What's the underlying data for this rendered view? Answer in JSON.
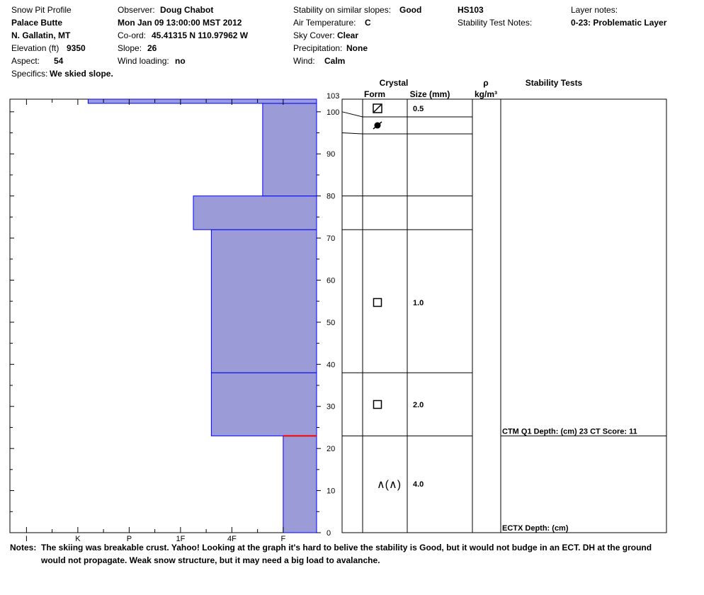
{
  "header": {
    "profile_title": "Snow Pit Profile",
    "location": "Palace Butte",
    "region": "N. Gallatin, MT",
    "elevation_label": "Elevation (ft)",
    "elevation_value": "9350",
    "aspect_label": "Aspect:",
    "aspect_value": "54",
    "specifics_label": "Specifics:",
    "specifics_value": "We skied slope.",
    "observer_label": "Observer:",
    "observer_value": "Doug Chabot",
    "datetime": "Mon Jan 09 13:00:00 MST 2012",
    "coord_label": "Co-ord:",
    "coord_value": "45.41315 N 110.97962 W",
    "slope_label": "Slope:",
    "slope_value": "26",
    "wind_loading_label": "Wind loading:",
    "wind_loading_value": "no",
    "stability_label": "Stability on similar slopes:",
    "stability_value": "Good",
    "air_temp_label": "Air Temperature:",
    "air_temp_value": "C",
    "sky_label": "Sky Cover:",
    "sky_value": "Clear",
    "precip_label": "Precipitation:",
    "precip_value": "None",
    "wind_label": "Wind:",
    "wind_value": "Calm",
    "hs": "HS103",
    "stability_notes_label": "Stability Test Notes:",
    "layer_notes_label": "Layer notes:",
    "layer_notes_value": "0-23: Problematic Layer"
  },
  "notes": {
    "label": "Notes:",
    "line1": "The skiing was breakable crust. Yahoo!  Looking at the graph it's hard to belive the stability is Good, but it would not budge in an ECT. DH at the ground",
    "line2": "would not propagate.  Weak snow structure, but it may need a big load to avalanche."
  },
  "colors": {
    "layer_fill": "#9b9bd7",
    "layer_edge": "#0000ff",
    "critical_layer": "#ff0000"
  },
  "chart_data": {
    "type": "bar",
    "title": "",
    "xlabel": "",
    "ylabel": "",
    "hardness_ticks": [
      "I",
      "K",
      "P",
      "1F",
      "4F",
      "F"
    ],
    "depth_ticks": [
      "0",
      "10",
      "20",
      "30",
      "40",
      "50",
      "60",
      "70",
      "80",
      "90",
      "100",
      "103"
    ],
    "ylim": [
      0,
      103
    ],
    "hardness_scale": "F = 1, 4F = 2, 1F = 3, P = 4, K = 5, I = 6",
    "layers": [
      {
        "bottom": 0,
        "top": 23,
        "hardness": 1.0
      },
      {
        "bottom": 23,
        "top": 38,
        "hardness": 2.4
      },
      {
        "bottom": 38,
        "top": 72,
        "hardness": 2.4
      },
      {
        "bottom": 72,
        "top": 80,
        "hardness": 2.75
      },
      {
        "bottom": 80,
        "top": 102,
        "hardness": 1.4
      },
      {
        "bottom": 102,
        "top": 103,
        "hardness": 4.8
      }
    ],
    "critical_layer_depth": 23,
    "columns": {
      "crystal": "Crystal",
      "form": "Form",
      "size": "Size (mm)",
      "density": "ρ",
      "density_unit": "kg/m³",
      "stability": "Stability Tests"
    },
    "crystal_layers": [
      {
        "top": 103,
        "bottom": 100,
        "form": "crust",
        "size": "0.5"
      },
      {
        "top": 100,
        "bottom": 95,
        "form": "rounded",
        "size": ""
      },
      {
        "top": 95,
        "bottom": 80,
        "form": "",
        "size": ""
      },
      {
        "top": 80,
        "bottom": 72,
        "form": "",
        "size": ""
      },
      {
        "top": 72,
        "bottom": 38,
        "form": "facet",
        "size": "1.0"
      },
      {
        "top": 38,
        "bottom": 23,
        "form": "facet",
        "size": "2.0"
      },
      {
        "top": 23,
        "bottom": 0,
        "form": "depth-hoar",
        "size": "4.0"
      }
    ],
    "depth_hoar_glyph": "∧(∧)",
    "stability_tests": [
      {
        "depth": 23,
        "text": "CTM Q1 Depth: (cm) 23 CT Score: 11"
      },
      {
        "depth": 0,
        "text": "ECTX   Depth: (cm)"
      }
    ]
  }
}
